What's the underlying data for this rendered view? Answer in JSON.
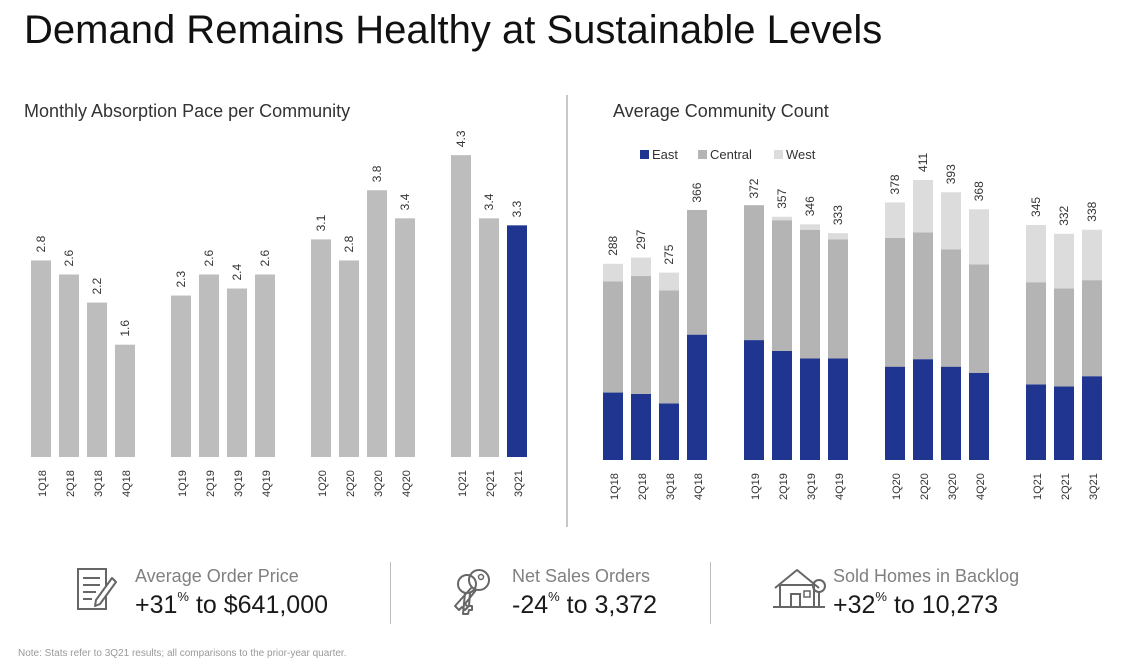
{
  "page": {
    "title": "Demand Remains Healthy at Sustainable Levels",
    "note": "Note: Stats refer to 3Q21 results; all comparisons to the prior-year quarter."
  },
  "colors": {
    "gray_bar": "#bdbdbd",
    "highlight_bar": "#1f3590",
    "east": "#1f3590",
    "central": "#b4b4b4",
    "west": "#dcdcdc"
  },
  "chart_data": [
    {
      "type": "bar",
      "title": "Monthly Absorption Pace per Community",
      "categories": [
        "1Q18",
        "2Q18",
        "3Q18",
        "4Q18",
        "1Q19",
        "2Q19",
        "3Q19",
        "4Q19",
        "1Q20",
        "2Q20",
        "3Q20",
        "4Q20",
        "1Q21",
        "2Q21",
        "3Q21"
      ],
      "values": [
        2.8,
        2.6,
        2.2,
        1.6,
        2.3,
        2.6,
        2.4,
        2.6,
        3.1,
        2.8,
        3.8,
        3.4,
        4.3,
        3.4,
        3.3
      ],
      "value_labels": [
        "2.8",
        "2.6",
        "2.2",
        "1.6",
        "2.3",
        "2.6",
        "2.4",
        "2.6",
        "3.1",
        "2.8",
        "3.8",
        "3.4",
        "4.3",
        "3.4",
        "3.3"
      ],
      "groups": [
        4,
        4,
        4,
        3
      ],
      "highlight_index": 14,
      "grid": false
    },
    {
      "type": "bar",
      "stacked": true,
      "title": "Average Community Count",
      "categories": [
        "1Q18",
        "2Q18",
        "3Q18",
        "4Q18",
        "1Q19",
        "2Q19",
        "3Q19",
        "4Q19",
        "1Q20",
        "2Q20",
        "3Q20",
        "4Q20",
        "1Q21",
        "2Q21",
        "3Q21"
      ],
      "groups": [
        4,
        4,
        4,
        3
      ],
      "legend_position": "top-left",
      "series": [
        {
          "name": "East",
          "values": [
            99,
            97,
            83,
            184,
            176,
            160,
            149,
            149,
            137,
            148,
            137,
            128,
            111,
            108,
            123
          ]
        },
        {
          "name": "Central",
          "values": [
            163,
            173,
            166,
            183,
            198,
            192,
            189,
            175,
            189,
            186,
            172,
            159,
            150,
            144,
            141
          ]
        },
        {
          "name": "West",
          "values": [
            26,
            27,
            26,
            -1,
            -2,
            5,
            8,
            9,
            52,
            77,
            84,
            81,
            84,
            80,
            74
          ]
        }
      ],
      "totals": [
        288,
        297,
        275,
        366,
        372,
        357,
        346,
        333,
        378,
        411,
        393,
        368,
        345,
        332,
        338
      ],
      "total_labels": [
        "288",
        "297",
        "275",
        "366",
        "372",
        "357",
        "346",
        "333",
        "378",
        "411",
        "393",
        "368",
        "345",
        "332",
        "338"
      ],
      "grid": false
    }
  ],
  "stats": [
    {
      "label": "Average Order Price",
      "value": "+31",
      "suffix": "to $641,000",
      "icon": "document-pen-icon"
    },
    {
      "label": "Net Sales Orders",
      "value": "-24",
      "suffix": "to 3,372",
      "icon": "keys-icon"
    },
    {
      "label": "Sold Homes in Backlog",
      "value": "+32",
      "suffix": "to 10,273",
      "icon": "house-icon"
    }
  ],
  "percent_sign": "%"
}
